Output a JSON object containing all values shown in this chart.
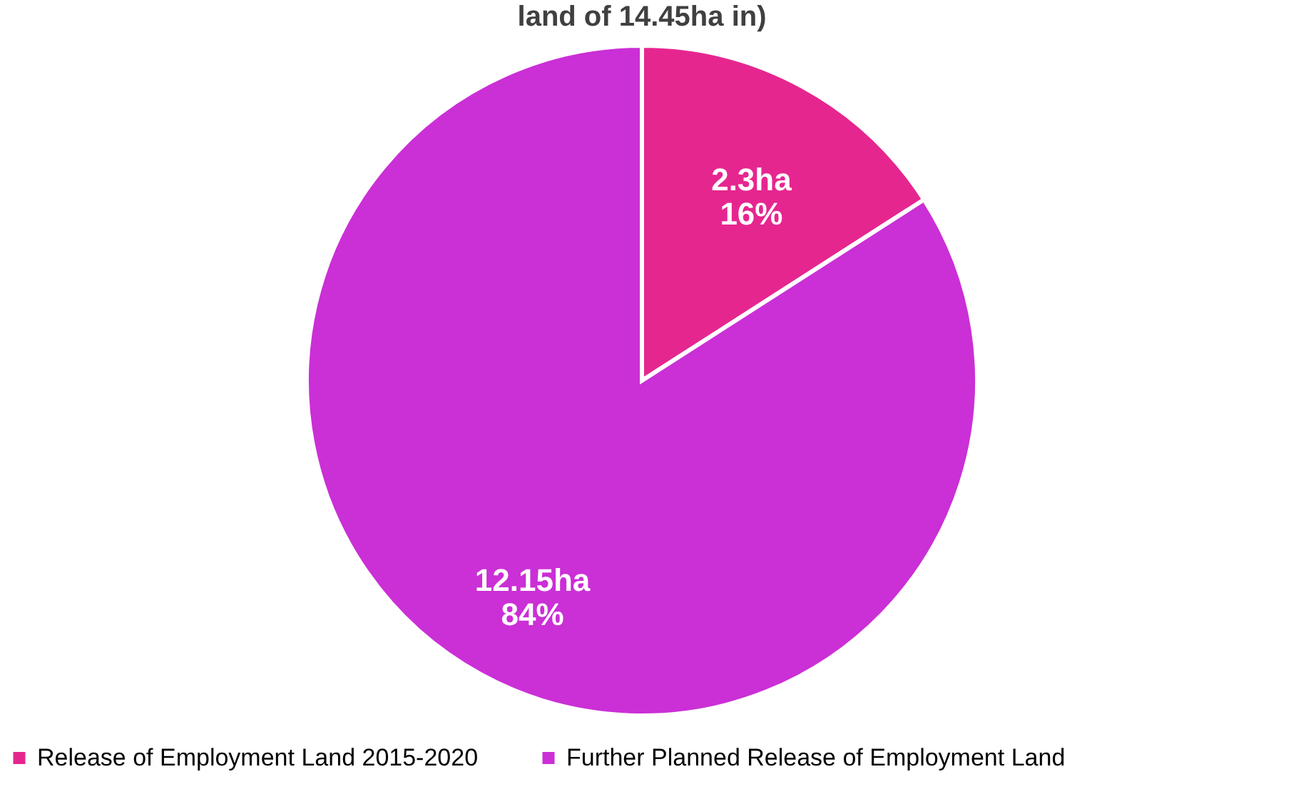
{
  "chart_data": {
    "type": "pie",
    "title": "land of 14.45ha in)",
    "categories": [
      "Release of Employment Land 2015-2020",
      "Further Planned Release of Employment Land"
    ],
    "values": [
      2.3,
      12.15
    ],
    "value_labels": [
      "2.3ha\n16%",
      "12.15ha\n84%"
    ],
    "colors": [
      "#e6268f",
      "#cb2fd6"
    ],
    "legend": "bottom"
  }
}
